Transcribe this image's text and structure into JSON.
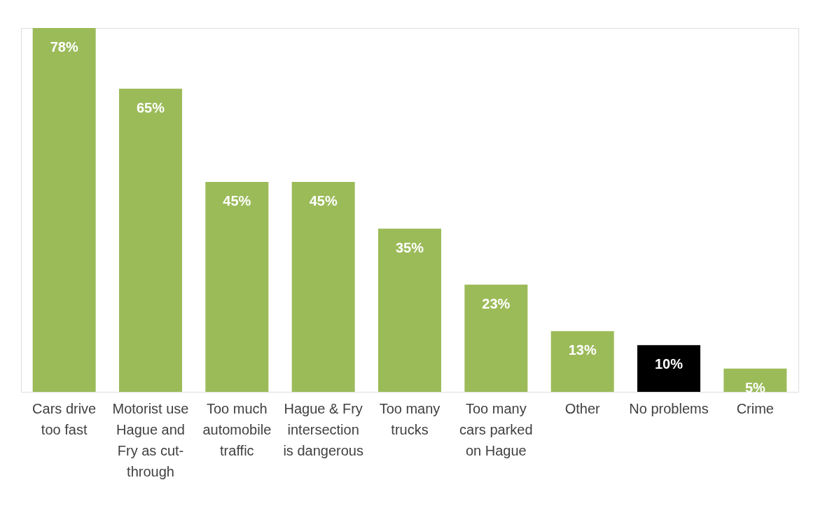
{
  "chart_data": {
    "type": "bar",
    "categories": [
      "Cars drive too fast",
      "Motorist use Hague and Fry as cut-through",
      "Too much automobile traffic",
      "Hague & Fry intersection is dangerous",
      "Too many trucks",
      "Too many cars parked on Hague",
      "Other",
      "No problems",
      "Crime"
    ],
    "values": [
      78,
      65,
      45,
      45,
      35,
      23,
      13,
      10,
      5
    ],
    "colors": [
      "#9bbb59",
      "#9bbb59",
      "#9bbb59",
      "#9bbb59",
      "#9bbb59",
      "#9bbb59",
      "#9bbb59",
      "#000000",
      "#9bbb59"
    ],
    "value_labels": [
      "78%",
      "65%",
      "45%",
      "45%",
      "35%",
      "23%",
      "13%",
      "10%",
      "5%"
    ],
    "grid": false
  }
}
